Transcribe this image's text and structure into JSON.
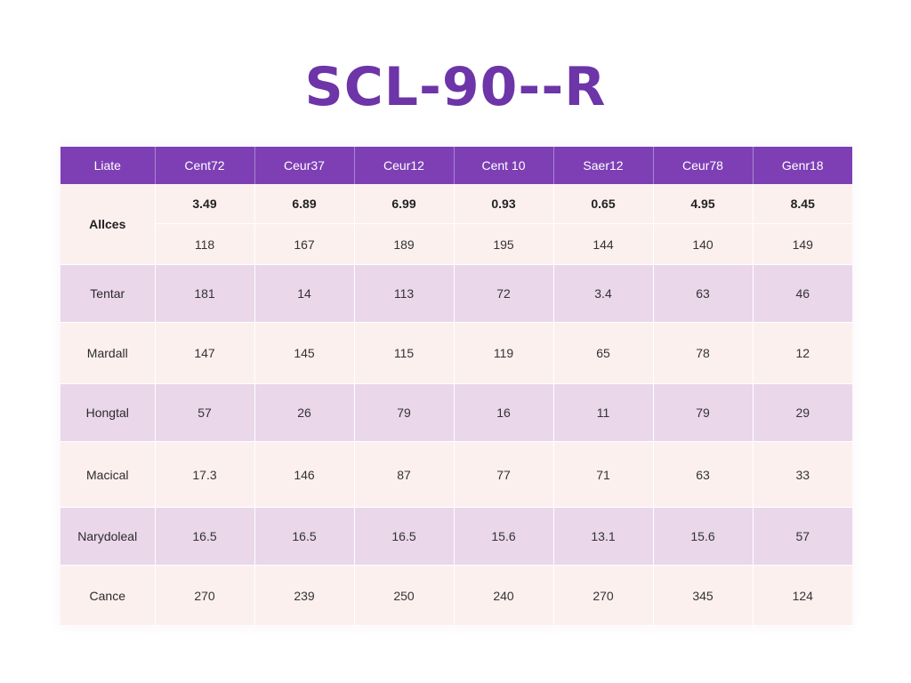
{
  "title": "SCL-90--R",
  "table": {
    "headers": [
      "Liate",
      "Cent72",
      "Ceur37",
      "Ceur12",
      "Cent 10",
      "Saer12",
      "Ceur78",
      "Genr18"
    ],
    "alices": {
      "label": "Allces",
      "row1": [
        "3.49",
        "6.89",
        "6.99",
        "0.93",
        "0.65",
        "4.95",
        "8.45"
      ],
      "row2": [
        "118",
        "167",
        "189",
        "195",
        "144",
        "140",
        "149"
      ]
    },
    "rows": [
      {
        "label": "Tentar",
        "values": [
          "181",
          "14",
          "113",
          "72",
          "3.4",
          "63",
          "46"
        ]
      },
      {
        "label": "Mardall",
        "values": [
          "147",
          "145",
          "115",
          "119",
          "65",
          "78",
          "12"
        ]
      },
      {
        "label": "Hongtal",
        "values": [
          "57",
          "26",
          "79",
          "16",
          "11",
          "79",
          "29"
        ]
      },
      {
        "label": "Macical",
        "values": [
          "17.3",
          "146",
          "87",
          "77",
          "71",
          "63",
          "33"
        ]
      },
      {
        "label": "Narydoleal",
        "values": [
          "16.5",
          "16.5",
          "16.5",
          "15.6",
          "13.1",
          "15.6",
          "57"
        ]
      },
      {
        "label": "Cance",
        "values": [
          "270",
          "239",
          "250",
          "240",
          "270",
          "345",
          "124"
        ]
      }
    ]
  },
  "colors": {
    "title": "#6d35a8",
    "header_bg": "#7e3fb5",
    "row_light": "#fcf0ef",
    "row_purple": "#ead7ea"
  }
}
